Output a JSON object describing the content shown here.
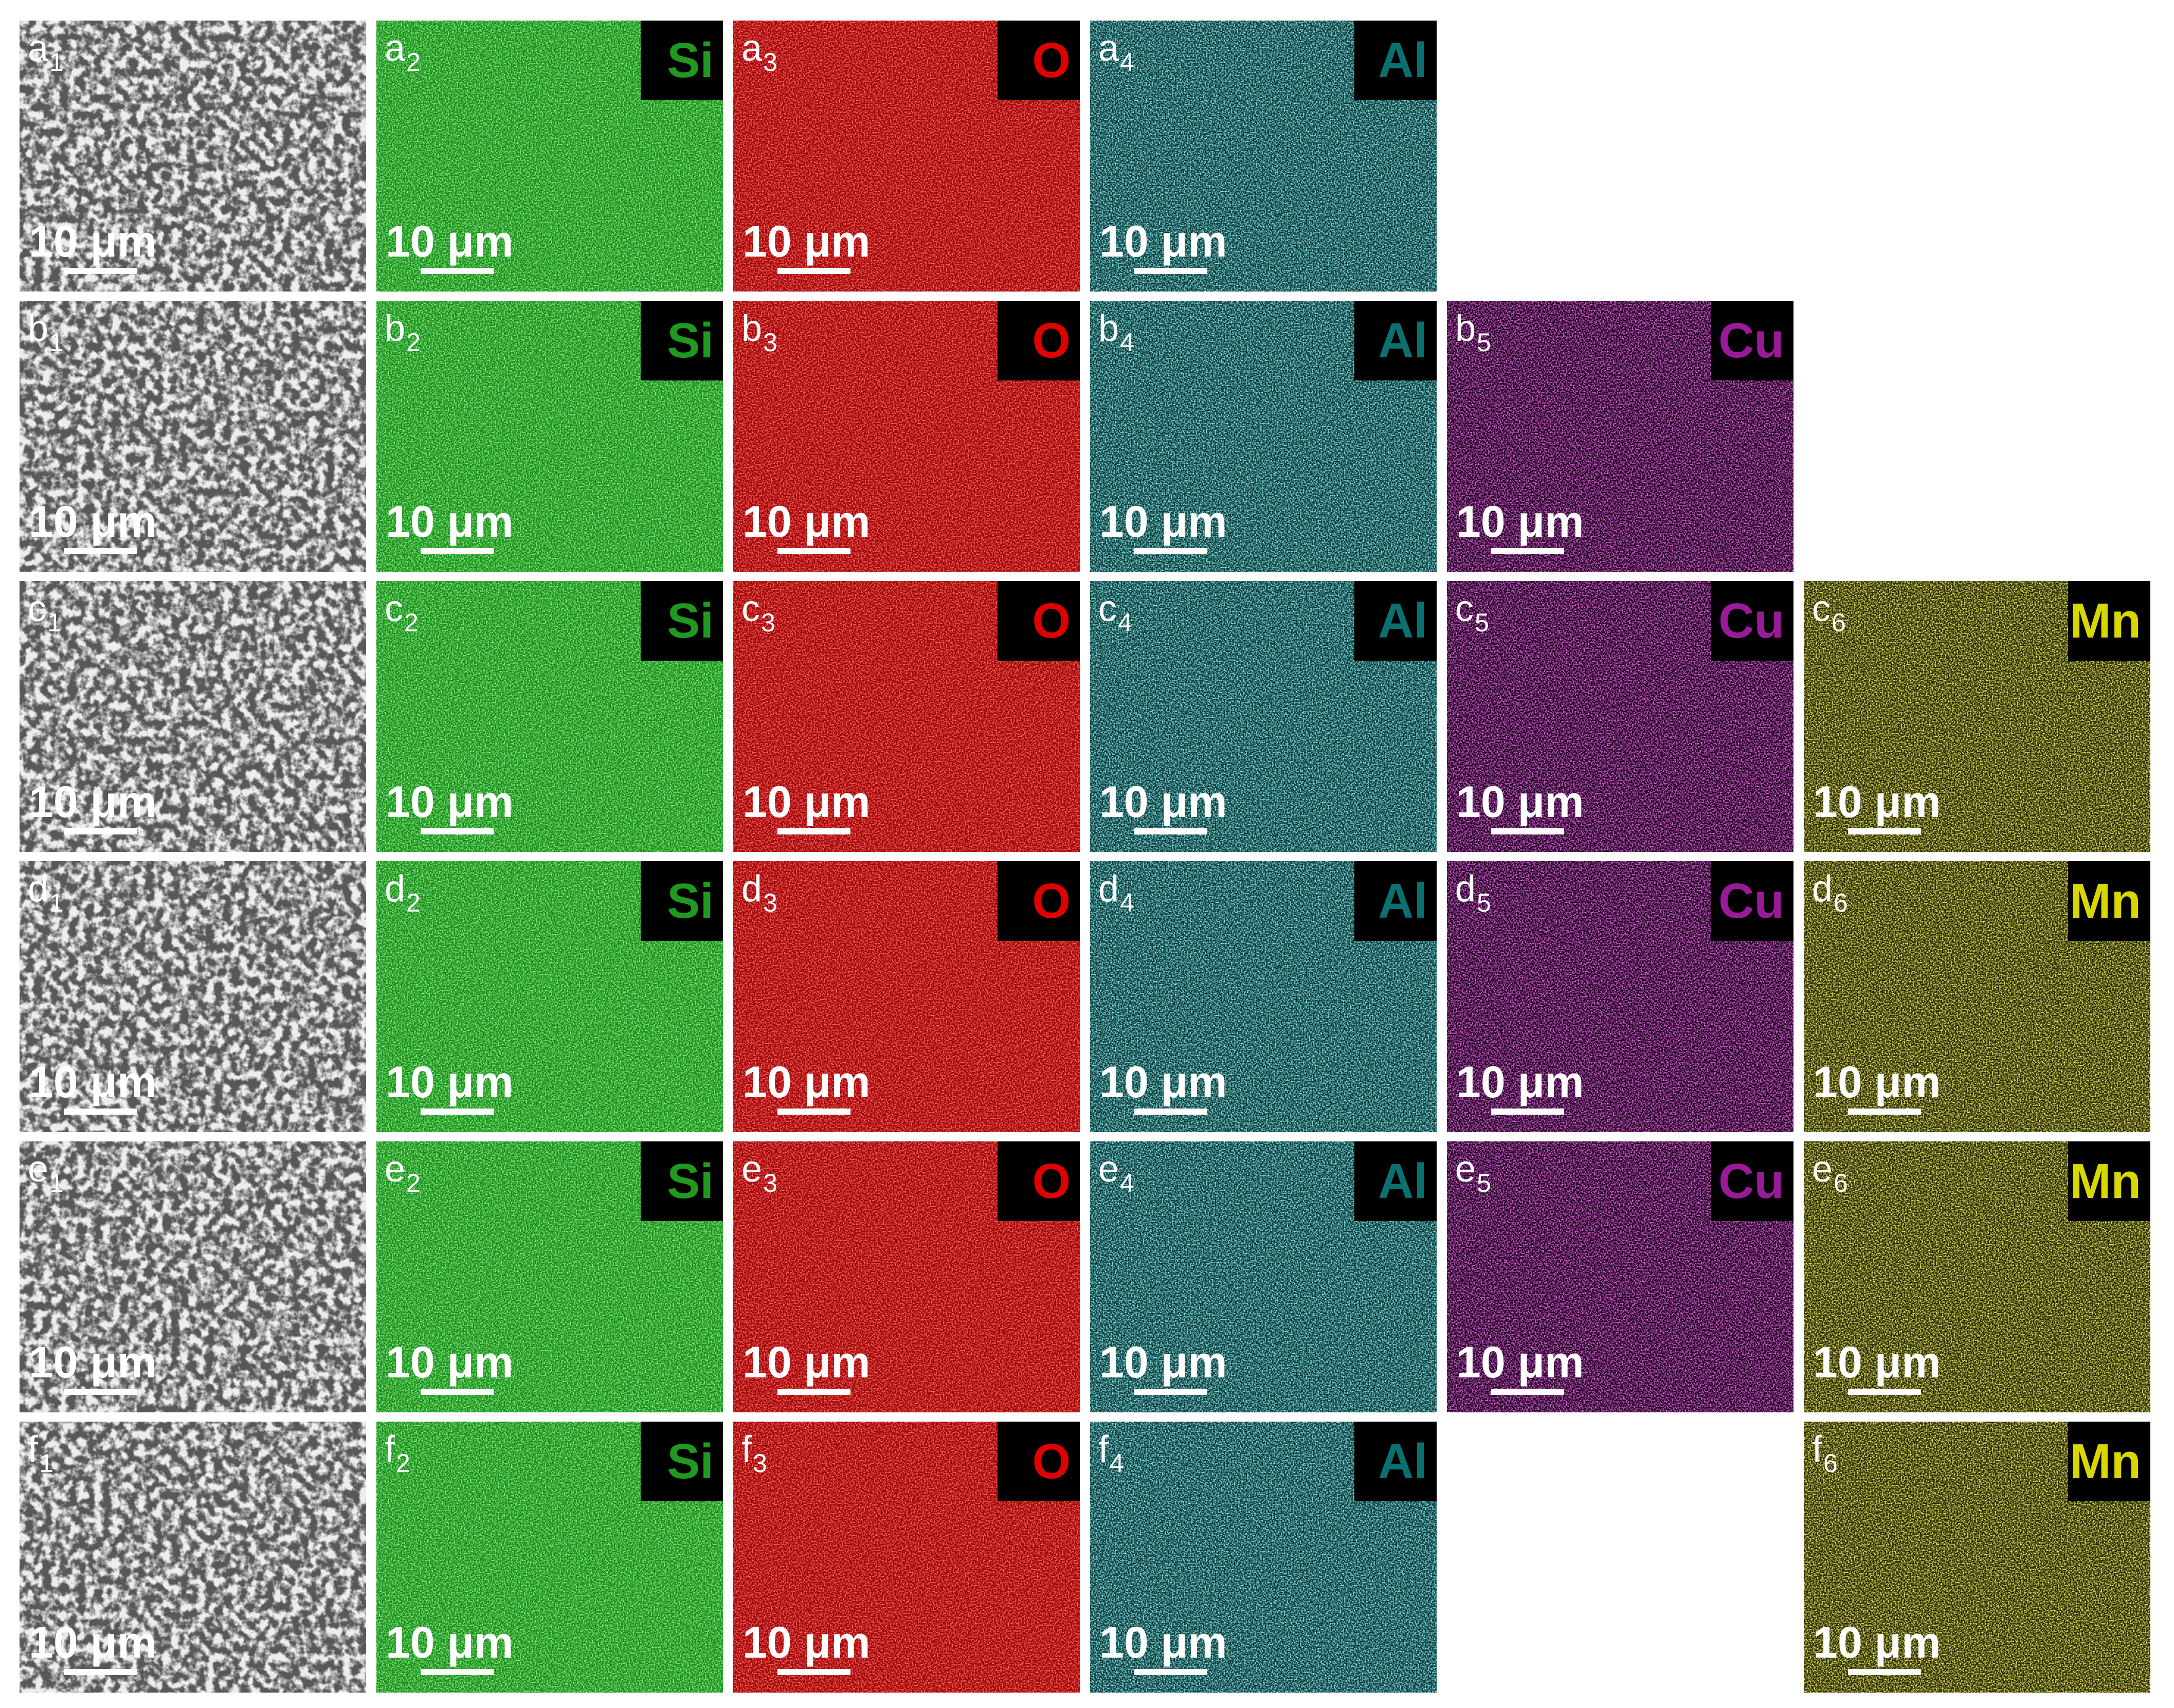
{
  "columns": [
    {
      "background": "#585858",
      "texture": "#d8d8d8",
      "label_color": "#ffffff"
    },
    {
      "background": "#168a16",
      "texture": "#3fd83f",
      "label_color": "#1f9a1f"
    },
    {
      "background": "#9a0000",
      "texture": "#ff2222",
      "label_color": "#e00000"
    },
    {
      "background": "#093838",
      "texture": "#3fc4c4",
      "label_color": "#0b7070"
    },
    {
      "background": "#1a001a",
      "texture": "#c822c8",
      "label_color": "#9a1a9a"
    },
    {
      "background": "#262600",
      "texture": "#cccc22",
      "label_color": "#d8d800"
    }
  ],
  "rows": [
    {
      "panels": [
        {
          "label": "a",
          "subscript": "1",
          "scale_bar": "10 μm"
        },
        {
          "label": "a",
          "subscript": "2",
          "element": "Si",
          "scale_bar": "10 μm"
        },
        {
          "label": "a",
          "subscript": "3",
          "element": "O",
          "scale_bar": "10 μm"
        },
        {
          "label": "a",
          "subscript": "4",
          "element": "Al",
          "scale_bar": "10 μm"
        }
      ]
    },
    {
      "panels": [
        {
          "label": "b",
          "subscript": "1",
          "scale_bar": "10 μm"
        },
        {
          "label": "b",
          "subscript": "2",
          "element": "Si",
          "scale_bar": "10 μm"
        },
        {
          "label": "b",
          "subscript": "3",
          "element": "O",
          "scale_bar": "10 μm"
        },
        {
          "label": "b",
          "subscript": "4",
          "element": "Al",
          "scale_bar": "10 μm"
        },
        {
          "label": "b",
          "subscript": "5",
          "element": "Cu",
          "scale_bar": "10 μm"
        }
      ]
    },
    {
      "panels": [
        {
          "label": "c",
          "subscript": "1",
          "scale_bar": "10 μm"
        },
        {
          "label": "c",
          "subscript": "2",
          "element": "Si",
          "scale_bar": "10 μm"
        },
        {
          "label": "c",
          "subscript": "3",
          "element": "O",
          "scale_bar": "10 μm"
        },
        {
          "label": "c",
          "subscript": "4",
          "element": "Al",
          "scale_bar": "10 μm"
        },
        {
          "label": "c",
          "subscript": "5",
          "element": "Cu",
          "scale_bar": "10 μm"
        },
        {
          "label": "c",
          "subscript": "6",
          "element": "Mn",
          "scale_bar": "10 μm"
        }
      ]
    },
    {
      "panels": [
        {
          "label": "d",
          "subscript": "1",
          "scale_bar": "10 μm"
        },
        {
          "label": "d",
          "subscript": "2",
          "element": "Si",
          "scale_bar": "10 μm"
        },
        {
          "label": "d",
          "subscript": "3",
          "element": "O",
          "scale_bar": "10 μm"
        },
        {
          "label": "d",
          "subscript": "4",
          "element": "Al",
          "scale_bar": "10 μm"
        },
        {
          "label": "d",
          "subscript": "5",
          "element": "Cu",
          "scale_bar": "10 μm"
        },
        {
          "label": "d",
          "subscript": "6",
          "element": "Mn",
          "scale_bar": "10 μm"
        }
      ]
    },
    {
      "panels": [
        {
          "label": "e",
          "subscript": "1",
          "scale_bar": "10 μm"
        },
        {
          "label": "e",
          "subscript": "2",
          "element": "Si",
          "scale_bar": "10 μm"
        },
        {
          "label": "e",
          "subscript": "3",
          "element": "O",
          "scale_bar": "10 μm"
        },
        {
          "label": "e",
          "subscript": "4",
          "element": "Al",
          "scale_bar": "10 μm"
        },
        {
          "label": "e",
          "subscript": "5",
          "element": "Cu",
          "scale_bar": "10 μm"
        },
        {
          "label": "e",
          "subscript": "6",
          "element": "Mn",
          "scale_bar": "10 μm"
        }
      ]
    },
    {
      "panels": [
        {
          "label": "f",
          "subscript": "1",
          "scale_bar": "10 μm"
        },
        {
          "label": "f",
          "subscript": "2",
          "element": "Si",
          "scale_bar": "10 μm"
        },
        {
          "label": "f",
          "subscript": "3",
          "element": "O",
          "scale_bar": "10 μm"
        },
        {
          "label": "f",
          "subscript": "4",
          "element": "Al",
          "scale_bar": "10 μm"
        },
        null,
        {
          "label": "f",
          "subscript": "6",
          "element": "Mn",
          "scale_bar": "10 μm"
        }
      ]
    }
  ]
}
